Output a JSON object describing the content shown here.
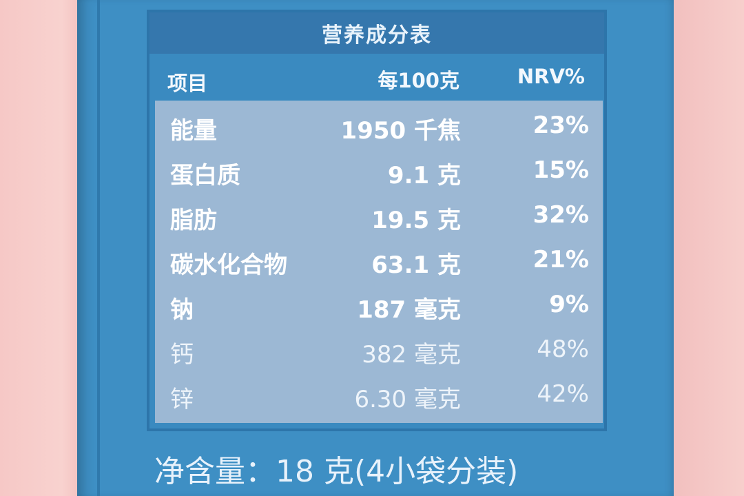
{
  "title": "营养成分表",
  "headers": {
    "item": "项目",
    "per": "每100克",
    "nrv": "NRV%"
  },
  "rows": [
    {
      "name": "能量",
      "amount": "1950 千焦",
      "nrv": "23%"
    },
    {
      "name": "蛋白质",
      "amount": "9.1 克",
      "nrv": "15%"
    },
    {
      "name": "脂肪",
      "amount": "19.5 克",
      "nrv": "32%"
    },
    {
      "name": "碳水化合物",
      "amount": "63.1 克",
      "nrv": "21%"
    },
    {
      "name": "钠",
      "amount": "187 毫克",
      "nrv": "9%"
    },
    {
      "name": "钙",
      "amount": "382 毫克",
      "nrv": "48%"
    },
    {
      "name": "锌",
      "amount": "6.30 毫克",
      "nrv": "42%"
    }
  ],
  "net_content": "净含量：18 克(4小袋分装)",
  "colors": {
    "package_blue": "#3e8fc4",
    "table_body": "#9cb8d4",
    "background_pink": "#f6c8c6"
  }
}
